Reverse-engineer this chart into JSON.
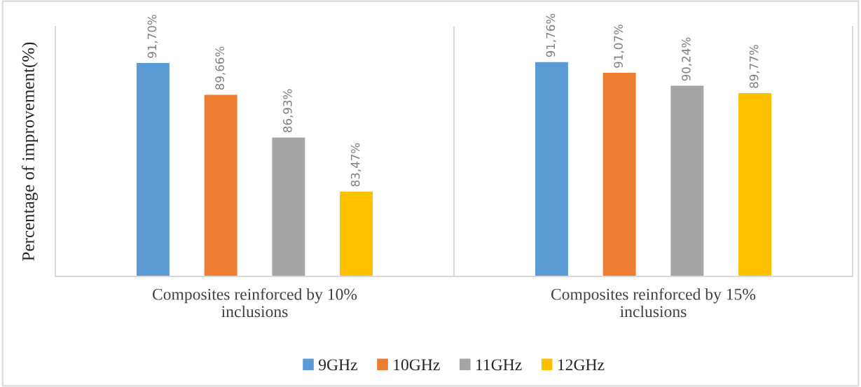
{
  "chart_data": {
    "type": "bar",
    "ylabel": "Percentage of improvement(%)",
    "categories": [
      "Composites reinforced by 10%\ninclusions",
      "Composites reinforced by 15%\ninclusions"
    ],
    "series": [
      {
        "name": "9GHz",
        "color": "#5b9bd5",
        "values": [
          91.7,
          91.76
        ],
        "value_labels": [
          "91,70%",
          "91,76%"
        ]
      },
      {
        "name": "10GHz",
        "color": "#ed7d31",
        "values": [
          89.66,
          91.07
        ],
        "value_labels": [
          "89,66%",
          "91,07%"
        ]
      },
      {
        "name": "11GHz",
        "color": "#a5a5a5",
        "values": [
          86.93,
          90.24
        ],
        "value_labels": [
          "86,93%",
          "90,24%"
        ]
      },
      {
        "name": "12GHz",
        "color": "#ffc000",
        "values": [
          83.47,
          89.77
        ],
        "value_labels": [
          "83,47%",
          "89,77%"
        ]
      }
    ],
    "ylim": [
      78,
      94
    ],
    "grid": "x",
    "legend": "bottom",
    "tick_labels": "x"
  }
}
